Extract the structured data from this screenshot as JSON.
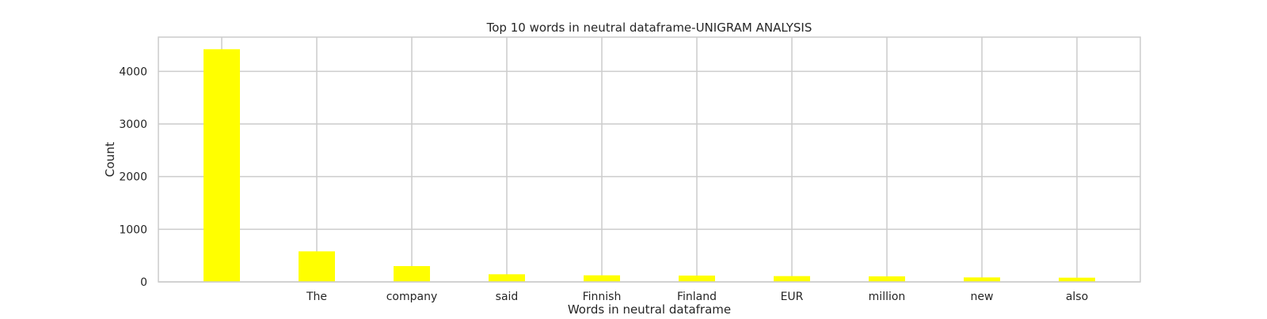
{
  "chart_data": {
    "type": "bar",
    "title": "Top 10 words in neutral dataframe-UNIGRAM ANALYSIS",
    "xlabel": "Words in neutral dataframe",
    "ylabel": "Count",
    "categories": [
      "",
      "The",
      "company",
      "said",
      "Finnish",
      "Finland",
      "EUR",
      "million",
      "new",
      "also"
    ],
    "values": [
      4420,
      580,
      300,
      145,
      125,
      120,
      110,
      105,
      85,
      80
    ],
    "yticks": [
      0,
      1000,
      2000,
      3000,
      4000
    ],
    "ylim": [
      0,
      4650
    ],
    "grid": true,
    "bar_color": "#ffff00",
    "grid_color": "#cccccc"
  }
}
